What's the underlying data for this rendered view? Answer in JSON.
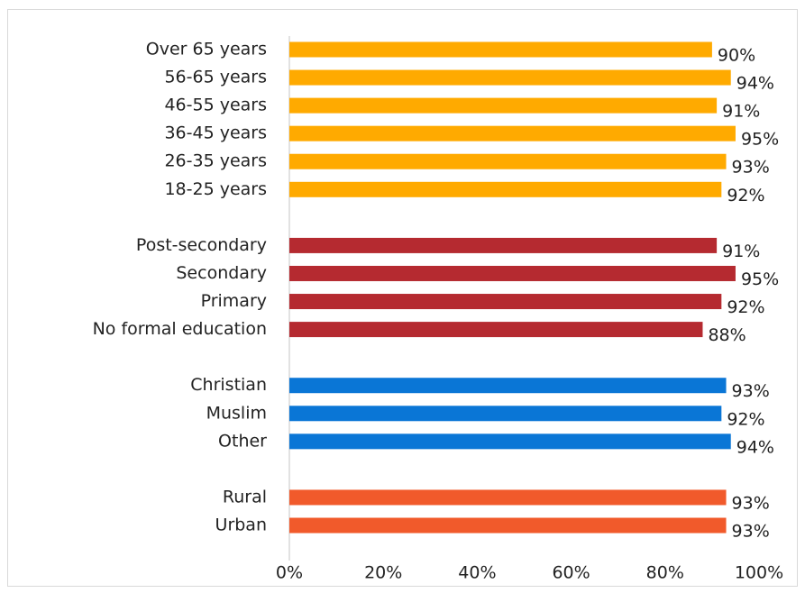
{
  "chart_data": {
    "type": "bar",
    "orientation": "horizontal",
    "groups": [
      {
        "color": "#ffaa00",
        "categories": [
          "Over 65 years",
          "56-65 years",
          "46-55 years",
          "36-45 years",
          "26-35 years",
          "18-25 years"
        ],
        "values": [
          90,
          94,
          91,
          95,
          93,
          92
        ],
        "value_labels": [
          "90%",
          "94%",
          "91%",
          "95%",
          "93%",
          "92%"
        ]
      },
      {
        "color": "#b52a30",
        "categories": [
          "Post-secondary",
          "Secondary",
          "Primary",
          "No formal education"
        ],
        "values": [
          91,
          95,
          92,
          88
        ],
        "value_labels": [
          "91%",
          "95%",
          "92%",
          "88%"
        ]
      },
      {
        "color": "#0a76d6",
        "categories": [
          "Christian",
          "Muslim",
          "Other"
        ],
        "values": [
          93,
          92,
          94
        ],
        "value_labels": [
          "93%",
          "92%",
          "94%"
        ]
      },
      {
        "color": "#f15a2b",
        "categories": [
          "Rural",
          "Urban"
        ],
        "values": [
          93,
          93
        ],
        "value_labels": [
          "93%",
          "93%"
        ]
      }
    ],
    "xlim": [
      0,
      100
    ],
    "xticks": [
      {
        "value": 0,
        "label": "0%"
      },
      {
        "value": 20,
        "label": "20%"
      },
      {
        "value": 40,
        "label": "40%"
      },
      {
        "value": 60,
        "label": "60%"
      },
      {
        "value": 80,
        "label": "80%"
      },
      {
        "value": 100,
        "label": "100%"
      }
    ],
    "grid": false
  }
}
